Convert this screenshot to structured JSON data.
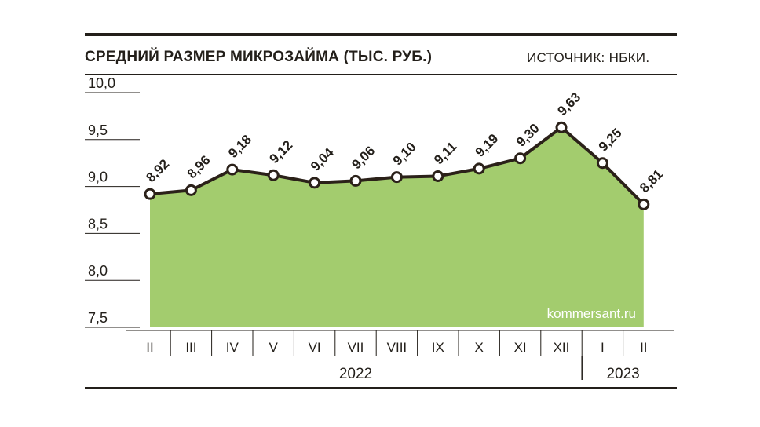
{
  "header": {
    "title": "СРЕДНИЙ РАЗМЕР МИКРОЗАЙМА (ТЫС. РУБ.)",
    "source": "ИСТОЧНИК: НБКИ."
  },
  "watermark": "kommersant.ru",
  "colors": {
    "fill": "#a3cc6e",
    "line": "#2b2119",
    "ink": "#231f1a"
  },
  "chart_data": {
    "type": "area",
    "x": [
      "II",
      "III",
      "IV",
      "V",
      "VI",
      "VII",
      "VIII",
      "IX",
      "X",
      "XI",
      "XII",
      "I",
      "II"
    ],
    "values": [
      8.92,
      8.96,
      9.18,
      9.12,
      9.04,
      9.06,
      9.1,
      9.11,
      9.19,
      9.3,
      9.63,
      9.25,
      8.81
    ],
    "data_labels": [
      "8,92",
      "8,96",
      "9,18",
      "9,12",
      "9,04",
      "9,06",
      "9,10",
      "9,11",
      "9,19",
      "9,30",
      "9,63",
      "9,25",
      "8,81"
    ],
    "year_groups": [
      {
        "label": "2022",
        "count": 11
      },
      {
        "label": "2023",
        "count": 2
      }
    ],
    "yticks": [
      7.5,
      8.0,
      8.5,
      9.0,
      9.5,
      10.0
    ],
    "ytick_labels": [
      "7,5",
      "8,0",
      "8,5",
      "9,0",
      "9,5",
      "10,0"
    ],
    "ylim": [
      7.5,
      10.0
    ],
    "grid": false,
    "legend": "none"
  }
}
